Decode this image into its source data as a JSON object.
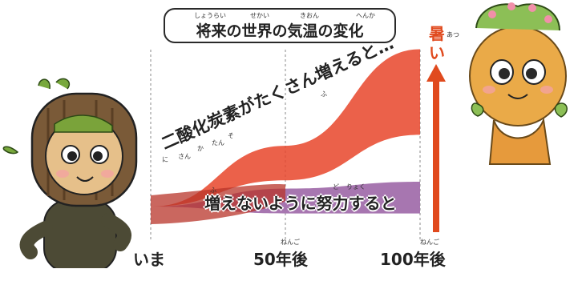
{
  "chart_data": {
    "type": "area",
    "title": "将来の世界の気温の変化",
    "title_ruby": [
      {
        "text": "しょうらい"
      },
      {
        "text": "せかい"
      },
      {
        "text": "きおん"
      },
      {
        "text": "へんか"
      }
    ],
    "categories": [
      "いま",
      "50年後",
      "100年後"
    ],
    "category_ruby": [
      "",
      "ねんご",
      "ねんご"
    ],
    "x": [
      0,
      50,
      100
    ],
    "series": [
      {
        "name": "二酸化炭素がたくさん増えると…",
        "color": "#e8452a",
        "low": [
          0.0,
          0.95,
          2.6
        ],
        "high": [
          0.0,
          2.2,
          5.7
        ]
      },
      {
        "name": "増えないように努力すると",
        "color": "#a26fac",
        "low": [
          0.0,
          -0.25,
          -0.25
        ],
        "high": [
          0.0,
          0.65,
          0.9
        ]
      }
    ],
    "upper_ruby": [
      "に",
      "さん",
      "か",
      "たん",
      "そ",
      "ふ"
    ],
    "lower_ruby": [
      "ふ",
      "ど",
      "りょく"
    ],
    "ylim": [
      -0.6,
      5.8
    ],
    "grid": "vertical dashed",
    "arrow_label": "暑い",
    "arrow_ruby": "あつ",
    "arrow_color": "#e04a1e"
  }
}
